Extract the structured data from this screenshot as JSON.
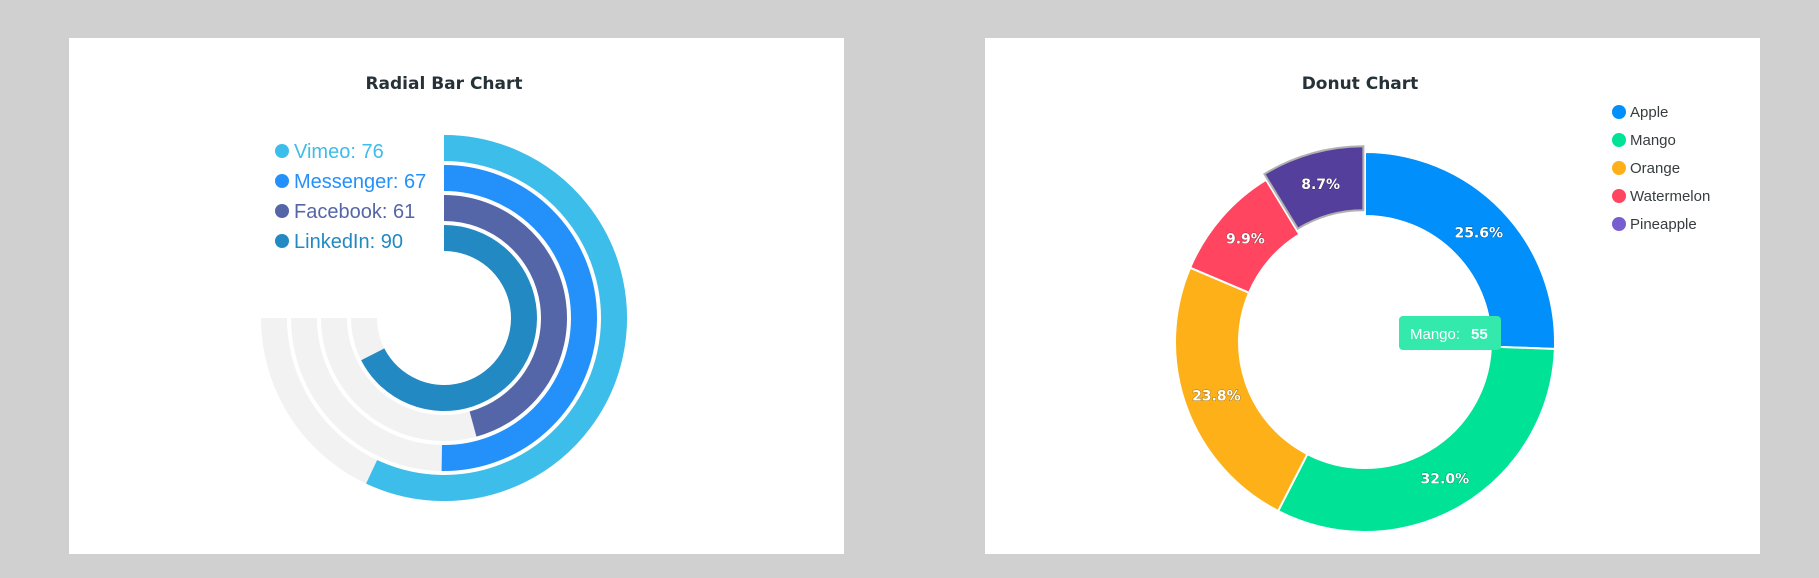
{
  "colors": {
    "background": "#d0d0d0",
    "card": "#ffffff",
    "track": "#f2f2f2",
    "title": "#263238"
  },
  "chart_data": [
    {
      "type": "radialBar",
      "title": "Radial Bar Chart",
      "max": 100,
      "start_angle_deg": 0,
      "end_angle_deg": 270,
      "legend_position": "top-left",
      "series": [
        {
          "name": "Vimeo",
          "value": 76,
          "color": "#3dbde9"
        },
        {
          "name": "Messenger",
          "value": 67,
          "color": "#2491fb"
        },
        {
          "name": "Facebook",
          "value": 61,
          "color": "#5566a8"
        },
        {
          "name": "LinkedIn",
          "value": 90,
          "color": "#2389c2"
        }
      ]
    },
    {
      "type": "pie",
      "variant": "donut",
      "title": "Donut Chart",
      "legend_position": "top-right",
      "series": [
        {
          "name": "Apple",
          "value": 44,
          "label": "25.6%",
          "color": "#008ffb"
        },
        {
          "name": "Mango",
          "value": 55,
          "label": "32.0%",
          "color": "#00e396"
        },
        {
          "name": "Orange",
          "value": 41,
          "label": "23.8%",
          "color": "#feb019"
        },
        {
          "name": "Watermelon",
          "value": 17,
          "label": "9.9%",
          "color": "#ff4560"
        },
        {
          "name": "Pineapple",
          "value": 15,
          "label": "8.7%",
          "color": "#775dd0",
          "exploded_color": "#553f9c"
        }
      ],
      "tooltip": {
        "label": "Mango:",
        "value": "55",
        "color": "#33e9ab"
      }
    }
  ]
}
